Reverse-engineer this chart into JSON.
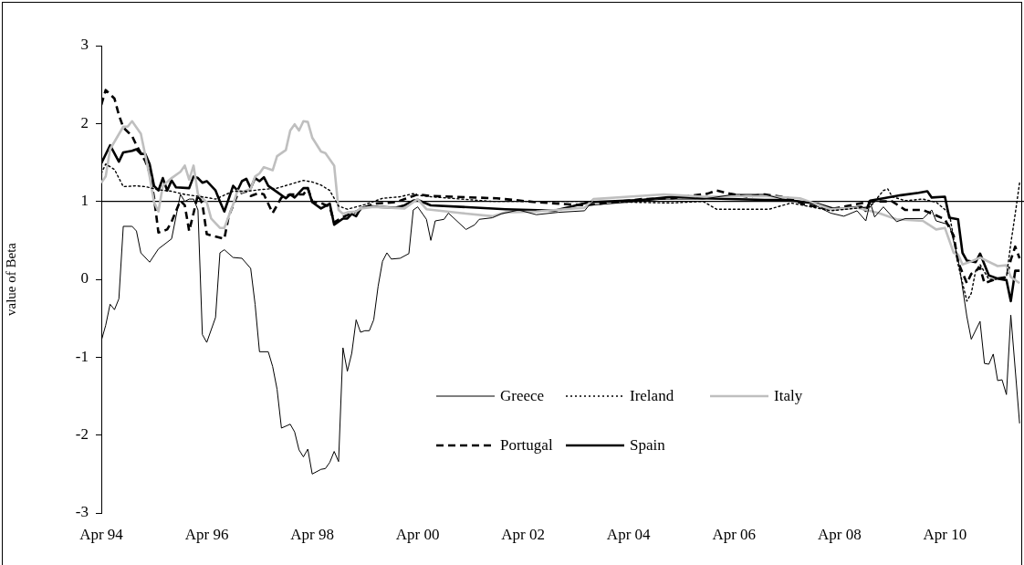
{
  "chart_data": {
    "type": "line",
    "ylabel": "value of Beta",
    "xlim": [
      "1994-04",
      "2011-10"
    ],
    "xticks": [
      {
        "value": "1994-04",
        "label": "Apr 94"
      },
      {
        "value": "1996-04",
        "label": "Apr 96"
      },
      {
        "value": "1998-04",
        "label": "Apr 98"
      },
      {
        "value": "2000-04",
        "label": "Apr 00"
      },
      {
        "value": "2002-04",
        "label": "Apr 02"
      },
      {
        "value": "2004-04",
        "label": "Apr 04"
      },
      {
        "value": "2006-04",
        "label": "Apr 06"
      },
      {
        "value": "2008-04",
        "label": "Apr 08"
      },
      {
        "value": "2010-04",
        "label": "Apr 10"
      }
    ],
    "ylim": [
      -3,
      3
    ],
    "yticks": [
      -3,
      -2,
      -1,
      0,
      1,
      2,
      3
    ],
    "grid": false,
    "legend": "bottom",
    "marker": "none",
    "ref_lines": [
      {
        "axis": "y",
        "value": 1,
        "color": "#000000"
      }
    ],
    "series": [
      {
        "name": "Greece",
        "color": "#000000",
        "line_style": "solid",
        "x": [
          "1994-04",
          "1994-05",
          "1994-06",
          "1994-07",
          "1994-08",
          "1994-09",
          "1994-11",
          "1994-12",
          "1995-01",
          "1995-03",
          "1995-05",
          "1995-08",
          "1995-10",
          "1995-11",
          "1995-12",
          "1996-01",
          "1996-02",
          "1996-03",
          "1996-04",
          "1996-06",
          "1996-07",
          "1996-08",
          "1996-10",
          "1996-12",
          "1997-02",
          "1997-03",
          "1997-04",
          "1997-06",
          "1997-07",
          "1997-08",
          "1997-09",
          "1997-11",
          "1997-12",
          "1998-01",
          "1998-02",
          "1998-03",
          "1998-04",
          "1998-06",
          "1998-07",
          "1998-08",
          "1998-09",
          "1998-10",
          "1998-11",
          "1998-12",
          "1999-01",
          "1999-02",
          "1999-03",
          "1999-04",
          "1999-05",
          "1999-06",
          "1999-07",
          "1999-08",
          "1999-09",
          "1999-10",
          "1999-12",
          "2000-02",
          "2000-03",
          "2000-04",
          "2000-06",
          "2000-07",
          "2000-08",
          "2000-10",
          "2000-11",
          "2001-03",
          "2001-05",
          "2001-06",
          "2001-09",
          "2001-11",
          "2002-03",
          "2002-07",
          "2002-12",
          "2003-06",
          "2003-07",
          "2004-04",
          "2004-12",
          "2005-09",
          "2006-04",
          "2006-11",
          "2007-03",
          "2007-09",
          "2008-02",
          "2008-05",
          "2008-08",
          "2008-10",
          "2008-11",
          "2008-12",
          "2009-02",
          "2009-05",
          "2009-07",
          "2009-11",
          "2010-01",
          "2010-02",
          "2010-05",
          "2010-07",
          "2010-09",
          "2010-10",
          "2010-12",
          "2011-01",
          "2011-02",
          "2011-03",
          "2011-04",
          "2011-05",
          "2011-06",
          "2011-07",
          "2011-09"
        ],
        "values": [
          -0.79,
          -0.59,
          -0.32,
          -0.39,
          -0.25,
          0.68,
          0.68,
          0.62,
          0.34,
          0.22,
          0.39,
          0.52,
          1.09,
          1.0,
          1.03,
          1.03,
          0.89,
          -0.71,
          -0.81,
          -0.49,
          0.34,
          0.38,
          0.28,
          0.27,
          0.14,
          -0.32,
          -0.93,
          -0.93,
          -1.12,
          -1.41,
          -1.91,
          -1.86,
          -1.96,
          -2.19,
          -2.28,
          -2.18,
          -2.5,
          -2.44,
          -2.43,
          -2.35,
          -2.21,
          -2.34,
          -0.88,
          -1.18,
          -0.95,
          -0.52,
          -0.68,
          -0.66,
          -0.66,
          -0.52,
          -0.09,
          0.23,
          0.34,
          0.26,
          0.27,
          0.33,
          0.89,
          0.93,
          0.77,
          0.5,
          0.75,
          0.77,
          0.85,
          0.64,
          0.7,
          0.77,
          0.79,
          0.84,
          0.89,
          0.83,
          0.86,
          0.88,
          0.95,
          0.99,
          1.03,
          1.03,
          1.09,
          1.09,
          1.03,
          0.99,
          0.85,
          0.81,
          0.88,
          0.75,
          0.99,
          0.8,
          0.93,
          0.74,
          0.78,
          0.78,
          0.89,
          0.75,
          0.7,
          0.27,
          -0.48,
          -0.77,
          -0.54,
          -1.08,
          -1.09,
          -0.96,
          -1.3,
          -1.29,
          -1.48,
          -0.46,
          -1.85
        ]
      },
      {
        "name": "Ireland",
        "color": "#000000",
        "line_style": "dotted",
        "x": [
          "1994-04",
          "1994-05",
          "1994-07",
          "1994-08",
          "1994-09",
          "1994-12",
          "1995-02",
          "1995-05",
          "1995-08",
          "1995-11",
          "1996-04",
          "1996-06",
          "1996-10",
          "1997-01",
          "1997-04",
          "1997-08",
          "1997-11",
          "1998-02",
          "1998-04",
          "1998-06",
          "1998-08",
          "1998-10",
          "1998-12",
          "1999-04",
          "1999-08",
          "1999-12",
          "2000-03",
          "2000-04",
          "2000-07",
          "2001-09",
          "2003-06",
          "2005-02",
          "2005-09",
          "2005-12",
          "2006-10",
          "2006-12",
          "2007-05",
          "2008-02",
          "2008-11",
          "2009-02",
          "2009-03",
          "2009-04",
          "2009-07",
          "2009-11",
          "2010-02",
          "2010-05",
          "2010-07",
          "2010-09",
          "2010-10",
          "2010-11",
          "2010-12",
          "2011-02",
          "2011-04",
          "2011-06",
          "2011-07",
          "2011-08",
          "2011-09"
        ],
        "values": [
          1.36,
          1.48,
          1.41,
          1.3,
          1.19,
          1.2,
          1.19,
          1.15,
          1.13,
          1.09,
          1.05,
          1.03,
          1.13,
          1.13,
          1.15,
          1.17,
          1.22,
          1.27,
          1.25,
          1.21,
          1.14,
          0.94,
          0.9,
          0.96,
          1.04,
          1.06,
          1.1,
          1.08,
          1.06,
          1.0,
          1.0,
          0.98,
          1.0,
          0.9,
          0.9,
          0.9,
          0.98,
          0.88,
          0.93,
          1.14,
          1.16,
          1.06,
          1.01,
          1.03,
          0.99,
          0.85,
          0.19,
          -0.28,
          -0.18,
          0.11,
          0.19,
          0.0,
          0.0,
          0.03,
          0.46,
          0.84,
          1.24
        ]
      },
      {
        "name": "Italy",
        "color": "#bfbfbf",
        "line_style": "solid",
        "x": [
          "1994-04",
          "1994-05",
          "1994-06",
          "1994-09",
          "1994-10",
          "1994-11",
          "1995-01",
          "1995-03",
          "1995-04",
          "1995-05",
          "1995-06",
          "1995-08",
          "1995-10",
          "1995-11",
          "1995-12",
          "1996-01",
          "1996-02",
          "1996-04",
          "1996-05",
          "1996-07",
          "1996-08",
          "1996-10",
          "1996-11",
          "1996-12",
          "1997-02",
          "1997-03",
          "1997-04",
          "1997-05",
          "1997-07",
          "1997-08",
          "1997-10",
          "1997-11",
          "1997-12",
          "1998-01",
          "1998-02",
          "1998-03",
          "1998-04",
          "1998-06",
          "1998-07",
          "1998-09",
          "1998-10",
          "1998-11",
          "1998-12",
          "1999-02",
          "1999-03",
          "1999-06",
          "2000-01",
          "2000-03",
          "2000-04",
          "2000-06",
          "2001-02",
          "2001-09",
          "2001-12",
          "2002-07",
          "2003-06",
          "2003-08",
          "2004-04",
          "2004-12",
          "2005-09",
          "2006-11",
          "2007-07",
          "2008-02",
          "2008-08",
          "2009-01",
          "2009-05",
          "2009-11",
          "2010-02",
          "2010-04",
          "2010-06",
          "2010-07",
          "2010-08",
          "2010-10",
          "2010-12",
          "2011-04",
          "2011-06",
          "2011-07",
          "2011-09"
        ],
        "values": [
          1.24,
          1.32,
          1.67,
          1.96,
          1.96,
          2.03,
          1.87,
          1.32,
          0.99,
          0.87,
          1.2,
          1.3,
          1.38,
          1.46,
          1.28,
          1.46,
          1.09,
          0.99,
          0.78,
          0.66,
          0.66,
          0.96,
          1.14,
          1.12,
          1.16,
          1.32,
          1.36,
          1.44,
          1.4,
          1.58,
          1.66,
          1.91,
          1.99,
          1.91,
          2.03,
          2.02,
          1.82,
          1.64,
          1.62,
          1.46,
          0.89,
          0.84,
          0.86,
          0.87,
          0.91,
          0.93,
          0.91,
          0.99,
          1.03,
          0.9,
          0.85,
          0.81,
          0.86,
          0.87,
          0.92,
          1.03,
          1.06,
          1.09,
          1.06,
          1.07,
          1.04,
          0.9,
          0.92,
          0.85,
          0.77,
          0.75,
          0.64,
          0.66,
          0.34,
          0.32,
          0.19,
          0.23,
          0.28,
          0.17,
          0.18,
          0.03,
          -0.05
        ]
      },
      {
        "name": "Portugal",
        "color": "#000000",
        "line_style": "dashed",
        "x": [
          "1994-04",
          "1994-05",
          "1994-07",
          "1994-08",
          "1994-09",
          "1994-11",
          "1994-12",
          "1995-02",
          "1995-03",
          "1995-04",
          "1995-05",
          "1995-07",
          "1995-08",
          "1995-10",
          "1995-11",
          "1995-12",
          "1996-01",
          "1996-02",
          "1996-03",
          "1996-04",
          "1996-08",
          "1996-09",
          "1996-11",
          "1997-01",
          "1997-02",
          "1997-04",
          "1997-05",
          "1997-07",
          "1997-09",
          "1997-11",
          "1998-02",
          "1998-03",
          "1998-04",
          "1998-06",
          "1998-08",
          "1998-09",
          "1998-11",
          "1999-02",
          "1999-06",
          "1999-11",
          "2000-03",
          "2000-04",
          "2000-07",
          "2001-10",
          "2002-07",
          "2003-06",
          "2004-07",
          "2005-02",
          "2005-10",
          "2005-12",
          "2006-03",
          "2006-07",
          "2006-11",
          "2007-04",
          "2007-08",
          "2008-02",
          "2008-11",
          "2009-04",
          "2009-07",
          "2009-11",
          "2010-02",
          "2010-04",
          "2010-06",
          "2010-07",
          "2010-09",
          "2010-10",
          "2010-12",
          "2011-01",
          "2011-04",
          "2011-06",
          "2011-07",
          "2011-08",
          "2011-09"
        ],
        "values": [
          2.24,
          2.43,
          2.32,
          2.11,
          1.95,
          1.84,
          1.72,
          1.52,
          1.37,
          1.05,
          0.6,
          0.64,
          0.74,
          1.01,
          0.95,
          0.62,
          0.85,
          1.09,
          0.97,
          0.58,
          0.52,
          0.81,
          1.09,
          1.13,
          1.07,
          1.11,
          1.09,
          0.85,
          1.05,
          1.09,
          1.09,
          1.17,
          1.0,
          0.98,
          0.93,
          0.73,
          0.8,
          0.87,
          0.97,
          0.99,
          1.07,
          1.09,
          1.07,
          1.04,
          0.99,
          0.95,
          1.03,
          1.04,
          1.1,
          1.14,
          1.1,
          1.06,
          1.09,
          1.05,
          0.96,
          0.9,
          1.0,
          1.0,
          0.89,
          0.89,
          0.82,
          0.77,
          0.56,
          0.22,
          -0.05,
          0.07,
          0.15,
          -0.05,
          0.01,
          0.03,
          0.25,
          0.42,
          0.27
        ]
      },
      {
        "name": "Spain",
        "color": "#000000",
        "line_style": "solid",
        "x": [
          "1994-04",
          "1994-06",
          "1994-08",
          "1994-09",
          "1994-11",
          "1994-12",
          "1995-01",
          "1995-02",
          "1995-03",
          "1995-04",
          "1995-05",
          "1995-06",
          "1995-07",
          "1995-08",
          "1995-09",
          "1995-12",
          "1996-01",
          "1996-02",
          "1996-03",
          "1996-04",
          "1996-06",
          "1996-07",
          "1996-08",
          "1996-10",
          "1996-11",
          "1996-12",
          "1997-01",
          "1997-02",
          "1997-03",
          "1997-04",
          "1997-05",
          "1997-06",
          "1997-08",
          "1997-10",
          "1997-11",
          "1997-12",
          "1998-02",
          "1998-03",
          "1998-04",
          "1998-06",
          "1998-08",
          "1998-09",
          "1998-11",
          "1998-12",
          "1999-01",
          "1999-02",
          "1999-03",
          "1999-05",
          "1999-07",
          "1999-11",
          "2000-01",
          "2000-03",
          "2000-04",
          "2000-07",
          "2001-12",
          "2002-11",
          "2003-07",
          "2004-07",
          "2005-02",
          "2005-09",
          "2006-11",
          "2007-04",
          "2007-11",
          "2008-03",
          "2008-09",
          "2008-10",
          "2008-11",
          "2009-02",
          "2009-06",
          "2009-10",
          "2009-12",
          "2010-01",
          "2010-04",
          "2010-05",
          "2010-07",
          "2010-08",
          "2010-09",
          "2010-11",
          "2010-12",
          "2011-02",
          "2011-04",
          "2011-06",
          "2011-07",
          "2011-08",
          "2011-09"
        ],
        "values": [
          1.49,
          1.72,
          1.51,
          1.63,
          1.65,
          1.67,
          1.61,
          1.61,
          1.48,
          1.2,
          1.14,
          1.3,
          1.14,
          1.27,
          1.18,
          1.17,
          1.32,
          1.3,
          1.24,
          1.26,
          1.14,
          1.0,
          0.87,
          1.2,
          1.14,
          1.26,
          1.29,
          1.17,
          1.3,
          1.26,
          1.31,
          1.2,
          1.12,
          1.04,
          1.09,
          1.05,
          1.17,
          1.17,
          0.99,
          0.91,
          0.97,
          0.7,
          0.78,
          0.78,
          0.84,
          0.81,
          0.91,
          0.94,
          0.93,
          0.92,
          0.95,
          1.01,
          1.02,
          0.95,
          0.9,
          0.88,
          0.99,
          1.02,
          1.06,
          1.04,
          1.02,
          1.02,
          0.97,
          0.9,
          0.93,
          0.88,
          1.01,
          1.04,
          1.08,
          1.11,
          1.13,
          1.05,
          1.06,
          0.79,
          0.77,
          0.34,
          0.24,
          0.22,
          0.33,
          0.05,
          0.01,
          -0.01,
          -0.28,
          0.11,
          0.11
        ]
      }
    ]
  }
}
